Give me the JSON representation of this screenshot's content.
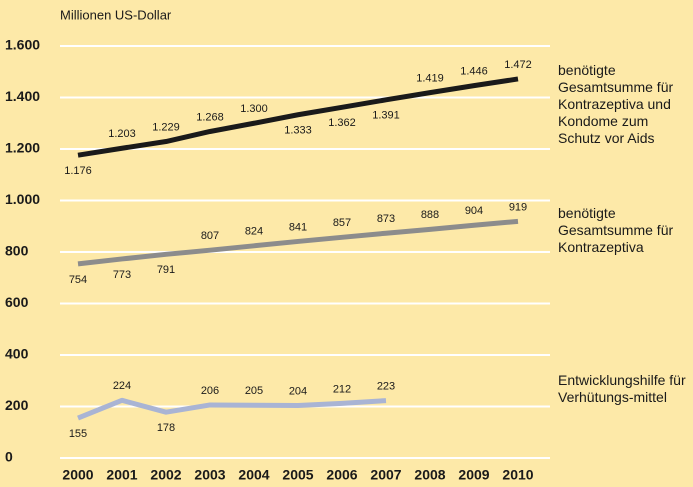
{
  "chart_data": {
    "type": "line",
    "y_axis_label": "Millionen US-Dollar",
    "categories": [
      "2000",
      "2001",
      "2002",
      "2003",
      "2004",
      "2005",
      "2006",
      "2007",
      "2008",
      "2009",
      "2010"
    ],
    "series": [
      {
        "name": "benötigte Gesamtsumme für Kontrazeptiva und Kondome zum Schutz vor Aids",
        "color": "#1a1a1a",
        "values": [
          1176,
          1203,
          1229,
          1268,
          1300,
          1333,
          1362,
          1391,
          1419,
          1446,
          1472
        ],
        "value_labels": [
          "1.176",
          "1.203",
          "1.229",
          "1.268",
          "1.300",
          "1.333",
          "1.362",
          "1.391",
          "1.419",
          "1.446",
          "1.472"
        ]
      },
      {
        "name": "benötigte Gesamtsumme für Kontrazeptiva",
        "color": "#8c8c8c",
        "values": [
          754,
          773,
          791,
          807,
          824,
          841,
          857,
          873,
          888,
          904,
          919
        ]
      },
      {
        "name": "Entwicklungshilfe für Verhütungs-mittel",
        "color": "#a9b4d4",
        "values": [
          155,
          224,
          178,
          206,
          205,
          204,
          212,
          223,
          null,
          null,
          null
        ]
      }
    ],
    "ylim": [
      0,
      1600
    ],
    "yticks": [
      0,
      200,
      400,
      600,
      800,
      {
        "value": 1000,
        "label": "1.000"
      },
      {
        "value": 1200,
        "label": "1.200"
      },
      {
        "value": 1400,
        "label": "1.400"
      },
      {
        "value": 1600,
        "label": "1.600"
      }
    ],
    "grid": true
  }
}
